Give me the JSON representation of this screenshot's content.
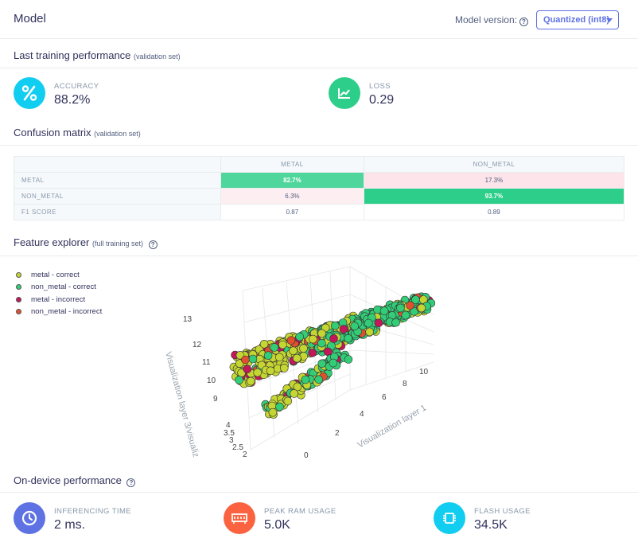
{
  "header": {
    "title": "Model",
    "model_version_label": "Model version:",
    "model_version_value": "Quantized (int8)"
  },
  "training": {
    "title": "Last training performance",
    "subtitle": "(validation set)",
    "accuracy": {
      "label": "ACCURACY",
      "value": "88.2%",
      "icon": "percent-icon",
      "color": "#11cdef"
    },
    "loss": {
      "label": "LOSS",
      "value": "0.29",
      "icon": "chart-line-icon",
      "color": "#2dce89"
    }
  },
  "confusion": {
    "title": "Confusion matrix",
    "subtitle": "(validation set)",
    "columns": [
      "METAL",
      "NON_METAL"
    ],
    "rows": [
      {
        "label": "METAL",
        "cells": [
          "82.7%",
          "17.3%"
        ]
      },
      {
        "label": "NON_METAL",
        "cells": [
          "6.3%",
          "93.7%"
        ]
      },
      {
        "label": "F1 SCORE",
        "cells": [
          "0.87",
          "0.89"
        ]
      }
    ],
    "good_color_1": "#4fd69c",
    "good_color_2": "#2dce89"
  },
  "explorer": {
    "title": "Feature explorer",
    "subtitle": "(full training set)",
    "legend": [
      {
        "label": "metal - correct",
        "color": "#c5d633"
      },
      {
        "label": "non_metal - correct",
        "color": "#33cc77"
      },
      {
        "label": "metal - incorrect",
        "color": "#c2185b"
      },
      {
        "label": "non_metal - incorrect",
        "color": "#e0502f"
      }
    ],
    "axes": {
      "z_label": "Visualization layer 3/visualiz",
      "x_label": "Visualization layer 1",
      "z_ticks": [
        "13",
        "12",
        "11",
        "10",
        "9",
        "4",
        "3.5",
        "3",
        "2.5",
        "2"
      ],
      "x_ticks": [
        "0",
        "2",
        "4",
        "6",
        "8",
        "10"
      ]
    }
  },
  "device": {
    "title": "On-device performance",
    "inferencing": {
      "label": "INFERENCING TIME",
      "value": "2 ms.",
      "icon": "clock-icon",
      "color": "#5e72e4"
    },
    "ram": {
      "label": "PEAK RAM USAGE",
      "value": "5.0K",
      "icon": "memory-icon",
      "color": "#fb6340"
    },
    "flash": {
      "label": "FLASH USAGE",
      "value": "34.5K",
      "icon": "chip-icon",
      "color": "#11cdef"
    }
  }
}
